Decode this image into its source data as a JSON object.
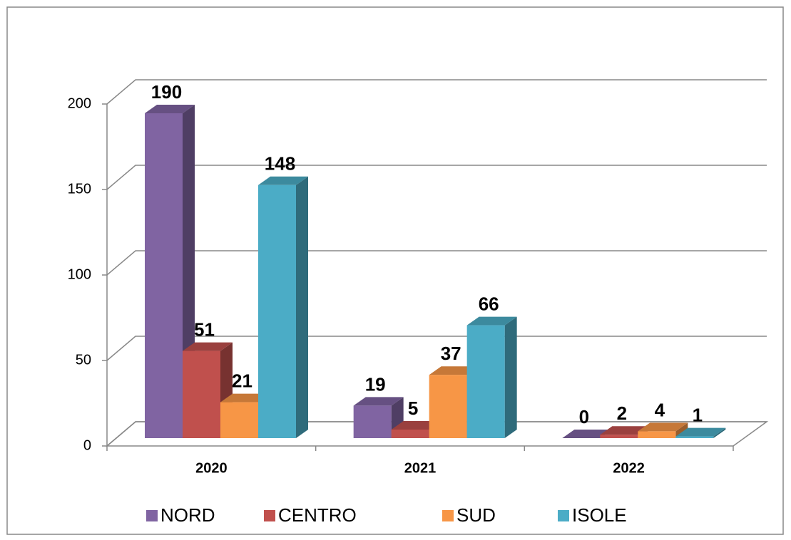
{
  "chart_data": {
    "type": "bar3d",
    "categories": [
      "2020",
      "2021",
      "2022"
    ],
    "series": [
      {
        "name": "NORD",
        "color": "#8064a2",
        "values": [
          190,
          19,
          0
        ]
      },
      {
        "name": "CENTRO",
        "color": "#c0504d",
        "values": [
          51,
          5,
          2
        ]
      },
      {
        "name": "SUD",
        "color": "#f79646",
        "values": [
          21,
          37,
          4
        ]
      },
      {
        "name": "ISOLE",
        "color": "#4bacc6",
        "values": [
          148,
          66,
          1
        ]
      }
    ],
    "ylim": [
      0,
      200
    ],
    "yticks": [
      0,
      50,
      100,
      150,
      200
    ],
    "grid": true,
    "legend": "bottom"
  }
}
